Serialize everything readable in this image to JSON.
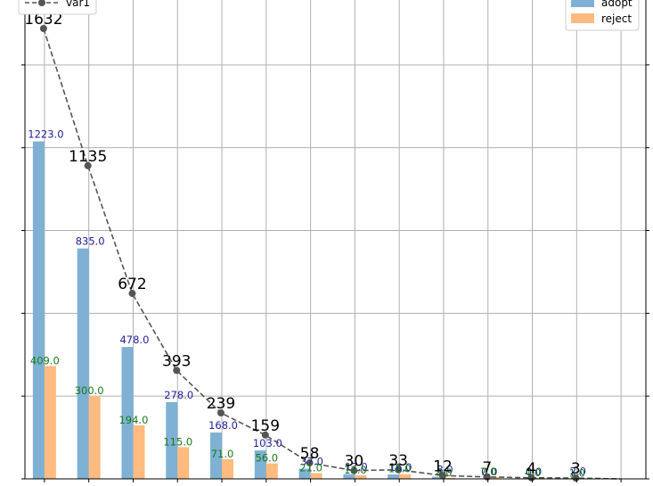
{
  "chart_data": {
    "type": "bar",
    "categories": [
      "",
      "",
      "",
      "",
      "",
      "",
      "",
      "",
      "",
      "",
      "",
      "",
      "",
      ""
    ],
    "series": [
      {
        "name": "adopt",
        "kind": "bar",
        "color": "#7eb1d3",
        "values": [
          1223.0,
          835.0,
          478.0,
          278.0,
          168.0,
          103.0,
          37.0,
          17.0,
          16.0,
          8.0,
          0.0,
          0.0,
          2.0,
          0.0
        ],
        "labels": [
          "1223.0",
          "835.0",
          "478.0",
          "278.0",
          "168.0",
          "103.0",
          "37.0",
          "17.0",
          "16.0",
          "8.0",
          "0.0",
          "0.0",
          "2.0",
          ""
        ],
        "label_color": "#1f1f99"
      },
      {
        "name": "reject",
        "kind": "bar",
        "color": "#ffbb80",
        "values": [
          409.0,
          300.0,
          194.0,
          115.0,
          71.0,
          56.0,
          21.0,
          13.0,
          17.0,
          4.0,
          7.0,
          4.0,
          1.0,
          0.0
        ],
        "labels": [
          "409.0",
          "300.0",
          "194.0",
          "115.0",
          "71.0",
          "56.0",
          "21.0",
          "13.0",
          "17.0",
          "4.0",
          "7.0",
          "4.0",
          "1.0",
          ""
        ],
        "label_color": "#1a7a1a"
      },
      {
        "name": "var1",
        "kind": "line",
        "color": "#555555",
        "values": [
          1632,
          1135,
          672,
          393,
          239,
          159,
          58,
          30,
          33,
          12,
          7,
          4,
          3,
          0
        ],
        "labels": [
          "1632",
          "1135",
          "672",
          "393",
          "239",
          "159",
          "58",
          "30",
          "33",
          "12",
          "7",
          "4",
          "3",
          ""
        ]
      }
    ],
    "y_ticks": [
      "",
      "",
      "",
      "",
      "",
      ""
    ],
    "right_ticks": [
      "",
      "",
      "",
      "",
      "",
      ""
    ],
    "ylim": [
      0,
      1800
    ],
    "grid": true,
    "legend_left": [
      "var1"
    ],
    "legend_right": [
      "adopt",
      "reject"
    ]
  }
}
